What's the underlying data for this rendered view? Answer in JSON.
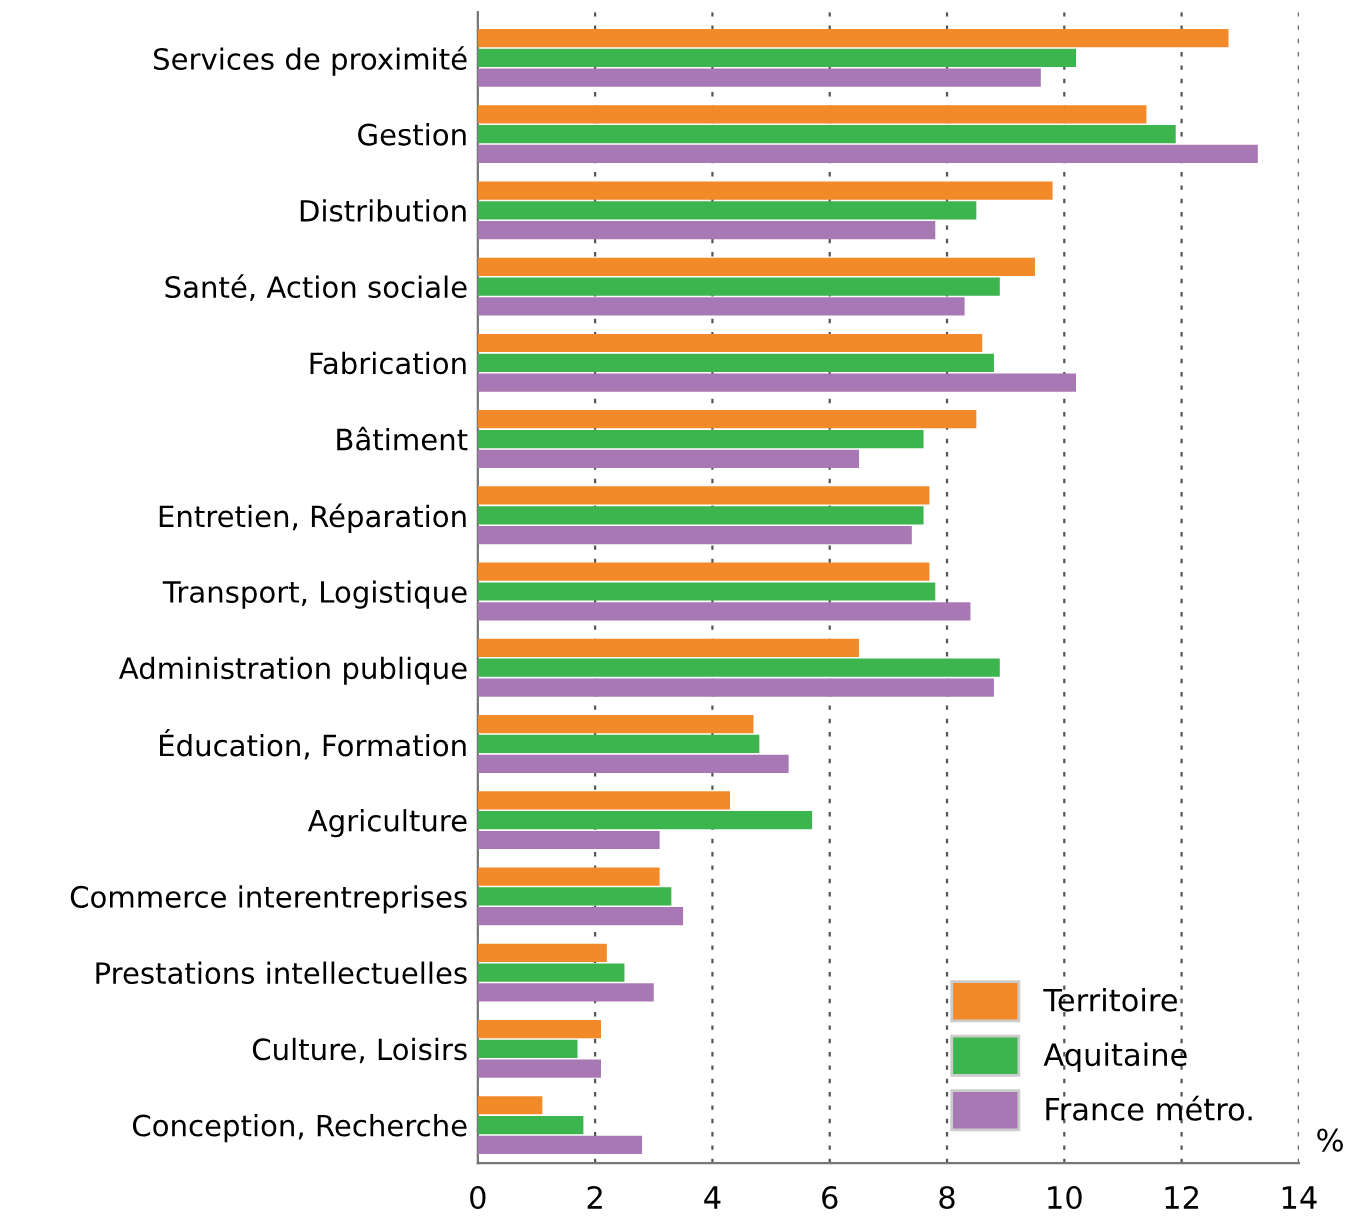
{
  "chart_data": {
    "type": "bar",
    "orientation": "horizontal",
    "categories": [
      "Services de proximité",
      "Gestion",
      "Distribution",
      "Santé, Action sociale",
      "Fabrication",
      "Bâtiment",
      "Entretien, Réparation",
      "Transport, Logistique",
      "Administration publique",
      "Éducation, Formation",
      "Agriculture",
      "Commerce interentreprises",
      "Prestations intellectuelles",
      "Culture, Loisirs",
      "Conception, Recherche"
    ],
    "series": [
      {
        "name": "Territoire",
        "color": "#f28a2a",
        "values": [
          12.8,
          11.4,
          9.8,
          9.5,
          8.6,
          8.5,
          7.7,
          7.7,
          6.5,
          4.7,
          4.3,
          3.1,
          2.2,
          2.1,
          1.1
        ]
      },
      {
        "name": "Aquitaine",
        "color": "#3cb54e",
        "values": [
          10.2,
          11.9,
          8.5,
          8.9,
          8.8,
          7.6,
          7.6,
          7.8,
          8.9,
          4.8,
          5.7,
          3.3,
          2.5,
          1.7,
          1.8
        ]
      },
      {
        "name": "France métro.",
        "color": "#a878b4",
        "values": [
          9.6,
          13.3,
          7.8,
          8.3,
          10.2,
          6.5,
          7.4,
          8.4,
          8.8,
          5.3,
          3.1,
          3.5,
          3.0,
          2.1,
          2.8
        ]
      }
    ],
    "xlim": [
      0,
      14
    ],
    "xticks": [
      0,
      2,
      4,
      6,
      8,
      10,
      12,
      14
    ],
    "xlabel": "%",
    "grid": "x",
    "legend": "bottom right"
  }
}
